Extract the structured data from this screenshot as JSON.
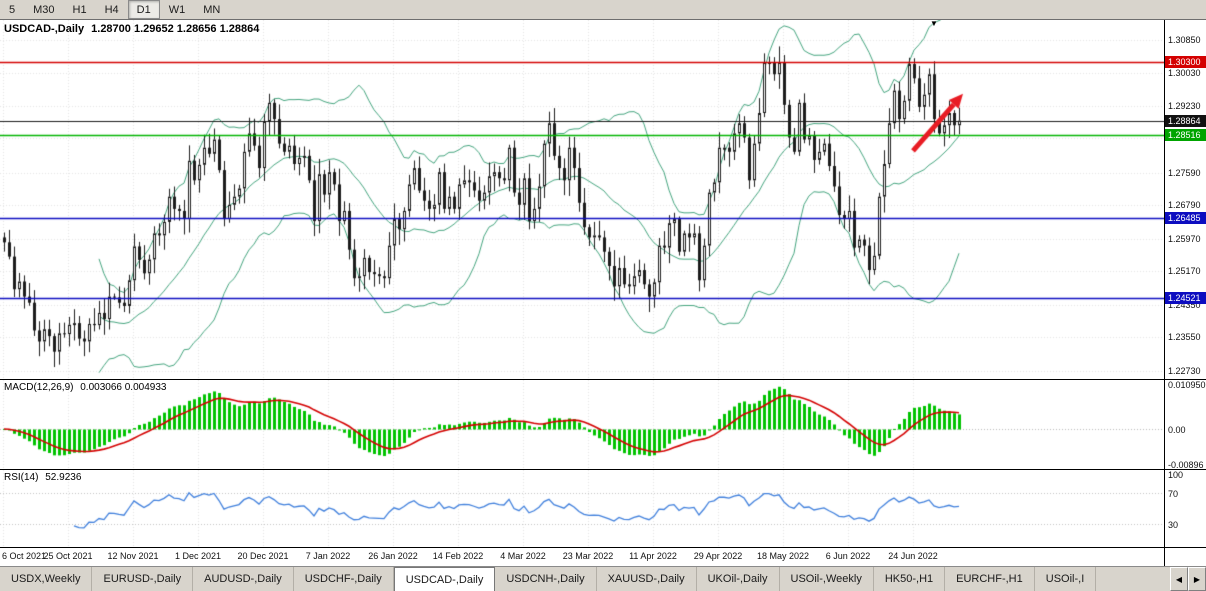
{
  "toolbar": {
    "timeframes": [
      {
        "label": "5",
        "active": false
      },
      {
        "label": "M30",
        "active": false
      },
      {
        "label": "H1",
        "active": false
      },
      {
        "label": "H4",
        "active": false
      },
      {
        "label": "D1",
        "active": true
      },
      {
        "label": "W1",
        "active": false
      },
      {
        "label": "MN",
        "active": false
      }
    ]
  },
  "tabs": {
    "items": [
      {
        "label": "USDX,Weekly",
        "active": false
      },
      {
        "label": "EURUSD-,Daily",
        "active": false
      },
      {
        "label": "AUDUSD-,Daily",
        "active": false
      },
      {
        "label": "USDCHF-,Daily",
        "active": false
      },
      {
        "label": "USDCAD-,Daily",
        "active": true
      },
      {
        "label": "USDCNH-,Daily",
        "active": false
      },
      {
        "label": "XAUUSD-,Daily",
        "active": false
      },
      {
        "label": "UKOil-,Daily",
        "active": false
      },
      {
        "label": "USOil-,Weekly",
        "active": false
      },
      {
        "label": "HK50-,H1",
        "active": false
      },
      {
        "label": "EURCHF-,H1",
        "active": false
      },
      {
        "label": "USOil-,I",
        "active": false
      }
    ],
    "scroll_left_icon": "◀",
    "scroll_right_icon": "▶"
  },
  "chart_data": {
    "type": "candlestick",
    "symbol": "USDCAD-",
    "timeframe": "Daily",
    "title": "USDCAD-,Daily",
    "ohlc_text": "1.28700 1.29652 1.28656 1.28864",
    "current_price": 1.28864,
    "x_labels": [
      "6 Oct 2021",
      "25 Oct 2021",
      "12 Nov 2021",
      "1 Dec 2021",
      "20 Dec 2021",
      "7 Jan 2022",
      "26 Jan 2022",
      "14 Feb 2022",
      "4 Mar 2022",
      "23 Mar 2022",
      "11 Apr 2022",
      "29 Apr 2022",
      "18 May 2022",
      "6 Jun 2022",
      "24 Jun 2022"
    ],
    "bars_per_label": 13,
    "first_open": 1.26,
    "closes": [
      1.2588,
      1.2553,
      1.2473,
      1.2492,
      1.2455,
      1.244,
      1.2372,
      1.2345,
      1.2375,
      1.2358,
      1.232,
      1.2365,
      1.2363,
      1.2386,
      1.239,
      1.2352,
      1.2345,
      1.2388,
      1.2385,
      1.2415,
      1.24,
      1.2455,
      1.2453,
      1.244,
      1.2432,
      1.2495,
      1.2578,
      1.2545,
      1.2512,
      1.2546,
      1.261,
      1.2605,
      1.2638,
      1.27,
      1.267,
      1.2665,
      1.2645,
      1.2788,
      1.274,
      1.2778,
      1.282,
      1.2805,
      1.284,
      1.2765,
      1.2645,
      1.268,
      1.27,
      1.272,
      1.281,
      1.2855,
      1.2825,
      1.277,
      1.2885,
      1.293,
      1.289,
      1.283,
      1.281,
      1.2825,
      1.278,
      1.2795,
      1.28,
      1.274,
      1.264,
      1.2755,
      1.2705,
      1.276,
      1.273,
      1.264,
      1.2665,
      1.257,
      1.25,
      1.2505,
      1.255,
      1.2515,
      1.251,
      1.2505,
      1.25,
      1.258,
      1.2645,
      1.262,
      1.2665,
      1.273,
      1.277,
      1.2715,
      1.269,
      1.267,
      1.268,
      1.276,
      1.267,
      1.27,
      1.267,
      1.273,
      1.274,
      1.2735,
      1.2715,
      1.269,
      1.271,
      1.275,
      1.276,
      1.2745,
      1.274,
      1.282,
      1.271,
      1.268,
      1.2745,
      1.264,
      1.267,
      1.2725,
      1.283,
      1.288,
      1.28,
      1.277,
      1.274,
      1.282,
      1.277,
      1.2685,
      1.2625,
      1.26,
      1.2605,
      1.26,
      1.2565,
      1.253,
      1.248,
      1.2525,
      1.2485,
      1.248,
      1.2505,
      1.252,
      1.2485,
      1.2455,
      1.249,
      1.258,
      1.2575,
      1.2635,
      1.2645,
      1.2565,
      1.261,
      1.26,
      1.261,
      1.2495,
      1.258,
      1.271,
      1.2735,
      1.282,
      1.282,
      1.281,
      1.2855,
      1.288,
      1.2845,
      1.274,
      1.283,
      1.2905,
      1.303,
      1.303,
      1.3,
      1.303,
      1.2925,
      1.2845,
      1.281,
      1.293,
      1.284,
      1.285,
      1.279,
      1.281,
      1.283,
      1.2775,
      1.2725,
      1.2655,
      1.2645,
      1.2665,
      1.2575,
      1.2595,
      1.258,
      1.252,
      1.2555,
      1.27,
      1.278,
      1.288,
      1.296,
      1.289,
      1.2935,
      1.3025,
      1.299,
      1.292,
      1.295,
      1.3,
      1.289,
      1.2855,
      1.2875,
      1.2905,
      1.2875,
      1.28864
    ],
    "price_axis_ticks": [
      "1.30850",
      "1.30030",
      "1.29230",
      "1.28430",
      "1.27590",
      "1.26790",
      "1.25970",
      "1.25170",
      "1.24350",
      "1.23550",
      "1.22730"
    ],
    "price_scale": {
      "min": 1.2253,
      "max": 1.3133
    },
    "overlay": {
      "name": "Bollinger Bands",
      "period": 20,
      "deviation": 2,
      "color": "#44a47e"
    },
    "candle_colors": {
      "outline": "#1c1c1c",
      "up": "#ffffff",
      "down": "#1c1c1c"
    },
    "grid_color": "#e4e4e4",
    "levels": [
      {
        "value": 1.303,
        "label": "1.30300",
        "color": "#d40000",
        "badge": "#d40000",
        "width": 1.4,
        "name": "resistance-line"
      },
      {
        "value": 1.28864,
        "label": "1.28864",
        "color": "#1a1a1a",
        "badge": "#111111",
        "width": 1,
        "name": "current-price-line"
      },
      {
        "value": 1.28516,
        "label": "1.28516",
        "color": "#00b400",
        "badge": "#00a400",
        "width": 1.4,
        "name": "support-line-green"
      },
      {
        "value": 1.26485,
        "label": "1.26485",
        "color": "#0d0dc0",
        "badge": "#0d0dc0",
        "width": 1.4,
        "name": "support-line-blue-1"
      },
      {
        "value": 1.24521,
        "label": "1.24521",
        "color": "#0d0dc0",
        "badge": "#0d0dc0",
        "width": 1.4,
        "name": "support-line-blue-2"
      }
    ],
    "arrow": {
      "from_bar": 182,
      "from_price": 1.2812,
      "to_bar": 192,
      "to_price": 1.2952,
      "color": "#e81c24"
    },
    "current_bar_marker": {
      "bar": 186,
      "glyph": "▼"
    },
    "macd": {
      "label": "MACD(12,26,9)",
      "values_text": "0.003066 0.004933",
      "params": [
        12,
        26,
        9
      ],
      "histogram_color": "#00c300",
      "signal_color": "#d40000",
      "scale": {
        "min": -0.0096,
        "max": 0.0118
      },
      "axis_ticks": [
        {
          "text": "0.010950",
          "value": 0.01095
        },
        {
          "text": "0.00",
          "value": 0
        },
        {
          "text": "-0.00896",
          "value": -0.00896
        }
      ]
    },
    "rsi": {
      "label": "RSI(14)",
      "value_text": "52.9236",
      "period": 14,
      "line_color": "#3f7fdc",
      "levels": [
        70,
        30
      ],
      "scale": {
        "min": 0,
        "max": 100
      },
      "axis_ticks": [
        {
          "text": "100",
          "value": 100
        },
        {
          "text": "70",
          "value": 70
        },
        {
          "text": "30",
          "value": 30
        }
      ]
    }
  }
}
